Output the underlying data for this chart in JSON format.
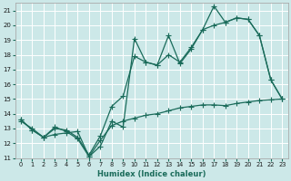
{
  "xlabel": "Humidex (Indice chaleur)",
  "background_color": "#cce8e8",
  "grid_color": "#b0d8d8",
  "line_color": "#1a6b5a",
  "xlim": [
    -0.5,
    23.5
  ],
  "ylim": [
    11,
    21.5
  ],
  "yticks": [
    11,
    12,
    13,
    14,
    15,
    16,
    17,
    18,
    19,
    20,
    21
  ],
  "xticks": [
    0,
    1,
    2,
    3,
    4,
    5,
    6,
    7,
    8,
    9,
    10,
    11,
    12,
    13,
    14,
    15,
    16,
    17,
    18,
    19,
    20,
    21,
    22,
    23
  ],
  "series1_x": [
    0,
    1,
    2,
    3,
    4,
    5,
    6,
    7,
    8,
    9,
    10,
    11,
    12,
    13,
    14,
    15,
    16,
    17,
    18,
    19,
    20,
    21,
    22,
    23
  ],
  "series1_y": [
    13.6,
    12.9,
    12.4,
    13.1,
    12.8,
    12.3,
    11.1,
    11.8,
    13.5,
    13.1,
    19.1,
    17.5,
    17.3,
    19.3,
    17.4,
    18.4,
    19.7,
    21.3,
    20.2,
    20.5,
    20.4,
    19.3,
    16.3,
    15.0
  ],
  "series2_x": [
    0,
    1,
    2,
    3,
    4,
    5,
    6,
    7,
    8,
    9,
    10,
    11,
    12,
    13,
    14,
    15,
    16,
    17,
    18,
    19,
    20,
    21,
    22,
    23
  ],
  "series2_y": [
    13.6,
    12.9,
    12.4,
    13.0,
    12.9,
    12.4,
    11.2,
    12.5,
    14.5,
    15.2,
    17.9,
    17.5,
    17.3,
    18.0,
    17.5,
    18.5,
    19.7,
    20.0,
    20.2,
    20.5,
    20.4,
    19.3,
    16.3,
    15.0
  ],
  "series3_x": [
    0,
    1,
    2,
    3,
    4,
    5,
    6,
    7,
    8,
    9,
    10,
    11,
    12,
    13,
    14,
    15,
    16,
    17,
    18,
    19,
    20,
    21,
    22,
    23
  ],
  "series3_y": [
    13.5,
    13.0,
    12.4,
    12.6,
    12.7,
    12.8,
    11.1,
    12.2,
    13.2,
    13.5,
    13.7,
    13.9,
    14.0,
    14.2,
    14.4,
    14.5,
    14.6,
    14.6,
    14.55,
    14.7,
    14.8,
    14.9,
    14.95,
    15.0
  ]
}
